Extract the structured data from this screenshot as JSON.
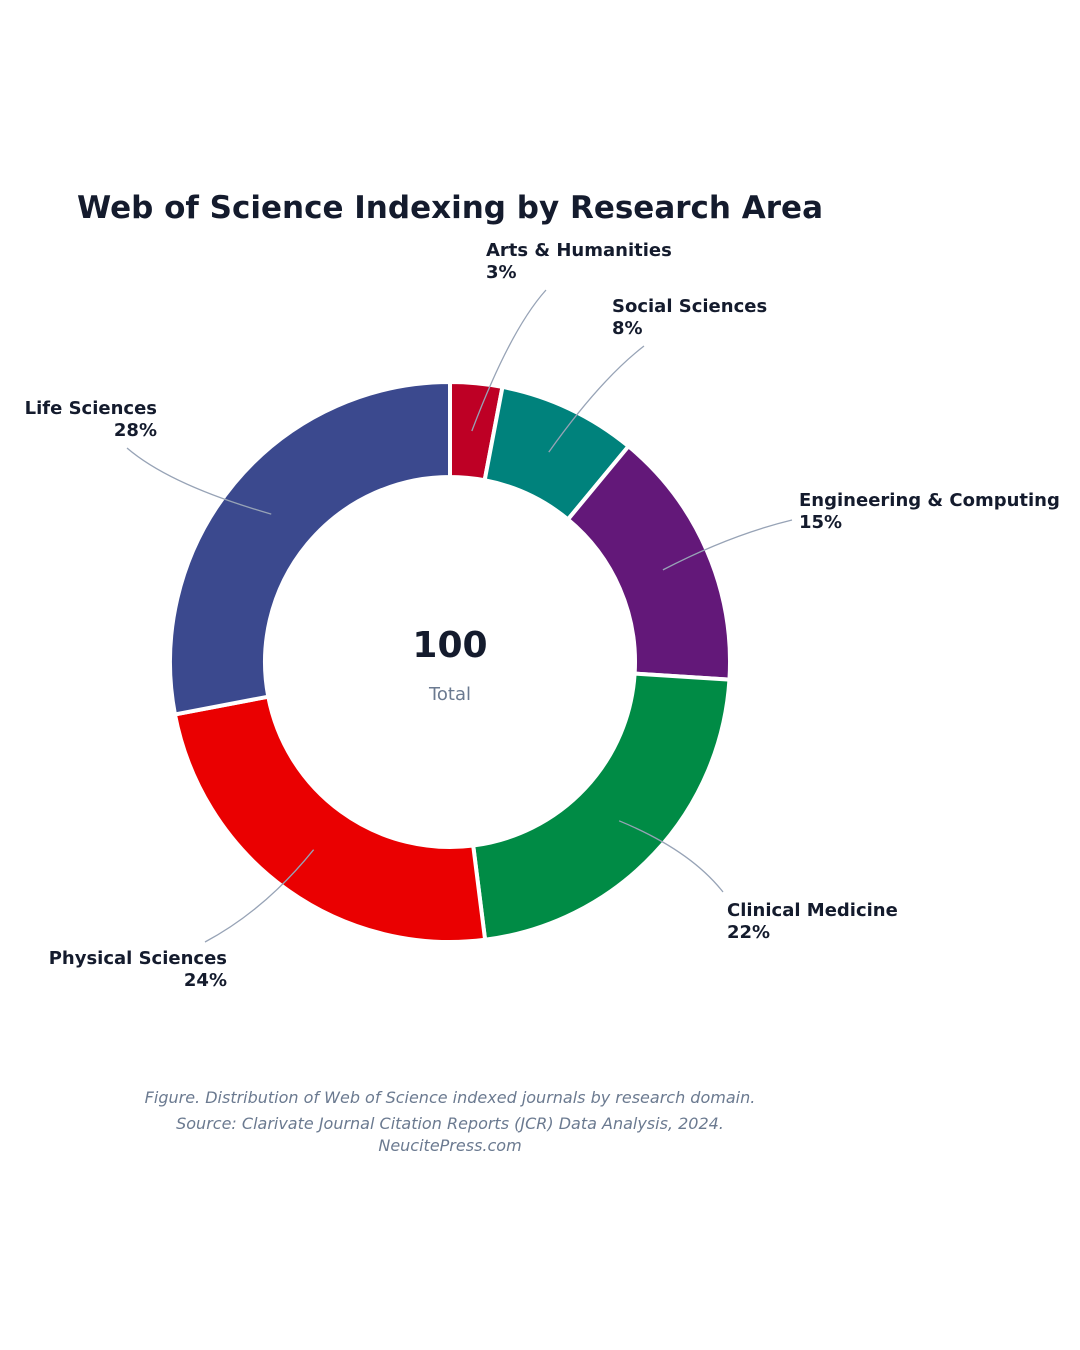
{
  "chart_data": {
    "type": "pie",
    "variant": "donut",
    "title": "Web of Science Indexing by Research Area",
    "center_value": "100",
    "center_label": "Total",
    "slices": [
      {
        "label": "Arts & Humanities",
        "value": 3,
        "value_label": "3%",
        "color": "#be0025"
      },
      {
        "label": "Social Sciences",
        "value": 8,
        "value_label": "8%",
        "color": "#00827c"
      },
      {
        "label": "Engineering & Computing",
        "value": 15,
        "value_label": "15%",
        "color": "#631879"
      },
      {
        "label": "Clinical Medicine",
        "value": 22,
        "value_label": "22%",
        "color": "#008b45"
      },
      {
        "label": "Physical Sciences",
        "value": 24,
        "value_label": "24%",
        "color": "#ea0001"
      },
      {
        "label": "Life Sciences",
        "value": 28,
        "value_label": "28%",
        "color": "#3b498e"
      }
    ],
    "legend": "none"
  },
  "caption": {
    "line1": "Figure. Distribution of Web of Science indexed journals by research domain.",
    "line2": "Source: Clarivate Journal Citation Reports (JCR) Data Analysis, 2024.",
    "line3": "NeucitePress.com"
  }
}
